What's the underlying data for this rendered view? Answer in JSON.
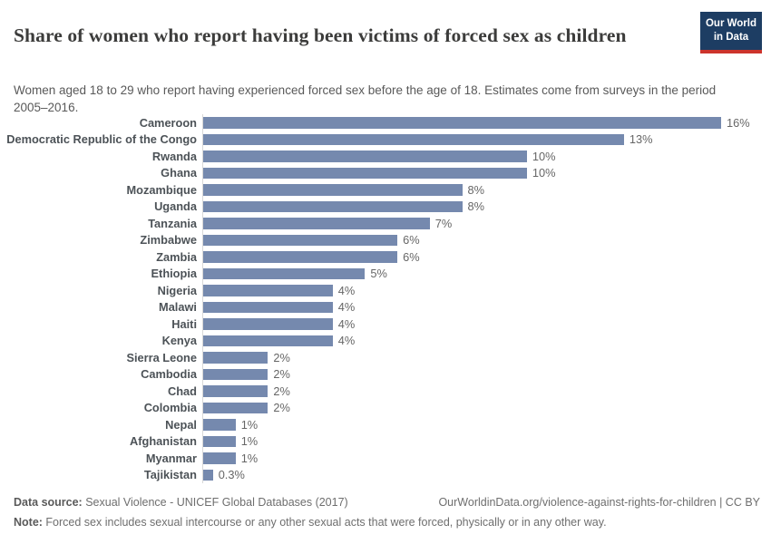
{
  "header": {
    "title": "Share of women who report having been victims of forced sex as children",
    "subtitle": "Women aged 18 to 29 who report having experienced forced sex before the age of 18. Estimates come from surveys in the period 2005–2016.",
    "logo": {
      "line1": "Our World",
      "line2": "in Data"
    }
  },
  "chart_data": {
    "type": "bar",
    "orientation": "horizontal",
    "title": "Share of women who report having been victims of forced sex as children",
    "categories": [
      "Cameroon",
      "Democratic Republic of the Congo",
      "Rwanda",
      "Ghana",
      "Mozambique",
      "Uganda",
      "Tanzania",
      "Zimbabwe",
      "Zambia",
      "Ethiopia",
      "Nigeria",
      "Malawi",
      "Haiti",
      "Kenya",
      "Sierra Leone",
      "Cambodia",
      "Chad",
      "Colombia",
      "Nepal",
      "Afghanistan",
      "Myanmar",
      "Tajikistan"
    ],
    "values": [
      16,
      13,
      10,
      10,
      8,
      8,
      7,
      6,
      6,
      5,
      4,
      4,
      4,
      4,
      2,
      2,
      2,
      2,
      1,
      1,
      1,
      0.3
    ],
    "value_labels": [
      "16%",
      "13%",
      "10%",
      "10%",
      "8%",
      "8%",
      "7%",
      "6%",
      "6%",
      "5%",
      "4%",
      "4%",
      "4%",
      "4%",
      "2%",
      "2%",
      "2%",
      "2%",
      "1%",
      "1%",
      "1%",
      "0.3%"
    ],
    "xlabel": "",
    "ylabel": "",
    "xlim": [
      0,
      16
    ],
    "grid": false,
    "legend": "none",
    "bar_color": "#7589ae"
  },
  "footer": {
    "datasource_label": "Data source:",
    "datasource_value": " Sexual Violence - UNICEF Global Databases (2017)",
    "link": "OurWorldinData.org/violence-against-rights-for-children | CC BY",
    "note_label": "Note:",
    "note_value": " Forced sex includes sexual intercourse or any other sexual acts that were forced, physically or in any other way."
  }
}
